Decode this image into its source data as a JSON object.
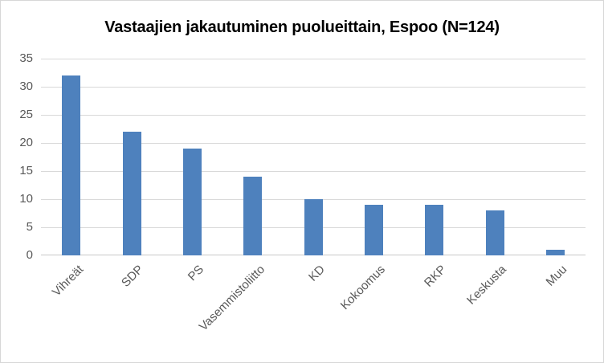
{
  "chart_data": {
    "type": "bar",
    "title": "Vastaajien jakautuminen puolueittain, Espoo (N=124)",
    "categories": [
      "Vihreät",
      "SDP",
      "PS",
      "Vasemmistoliitto",
      "KD",
      "Kokoomus",
      "RKP",
      "Keskusta",
      "Muu"
    ],
    "values": [
      32,
      22,
      19,
      14,
      10,
      9,
      9,
      8,
      1
    ],
    "xlabel": "",
    "ylabel": "",
    "ylim": [
      0,
      35
    ],
    "yticks": [
      0,
      5,
      10,
      15,
      20,
      25,
      30,
      35
    ],
    "grid": true,
    "legend": false,
    "colors": {
      "bar": "#4e81bd",
      "gridline": "#d9d9d9",
      "axis_line": "#c9c9c9",
      "tick_label": "#595959",
      "title": "#000000",
      "frame_border": "#d7d7d7",
      "background": "#ffffff"
    }
  }
}
